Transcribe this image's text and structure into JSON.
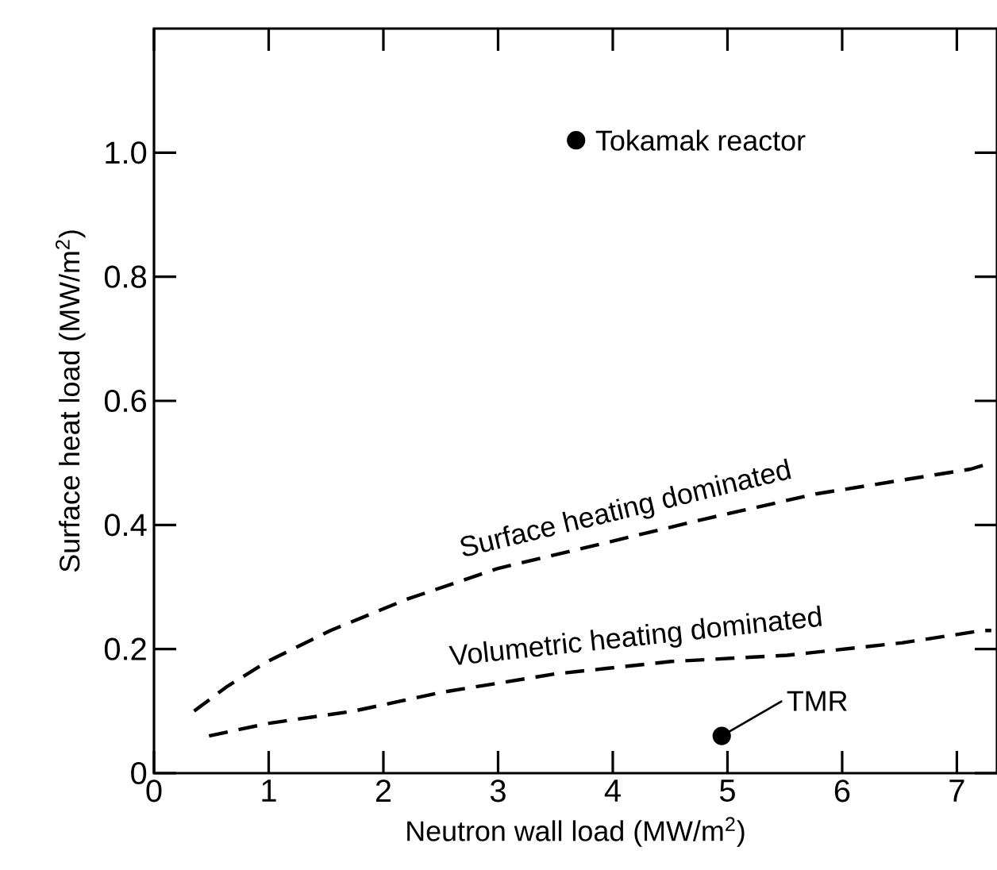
{
  "chart_data": {
    "type": "line",
    "xlabel": "Neutron wall load (MW/m$^{2}$)",
    "ylabel": "Surface heat load (MW/m$^{2}$)",
    "xlim": [
      0,
      7.35
    ],
    "ylim": [
      0,
      1.2
    ],
    "xticks": [
      0,
      1,
      2,
      3,
      4,
      5,
      6,
      7
    ],
    "yticks": [
      0,
      0.2,
      0.4,
      0.6,
      0.8,
      {
        "value": 1,
        "label": "1.0"
      }
    ],
    "grid": false,
    "annotations": [
      {
        "text": "Tokamak reactor",
        "x": 3.68,
        "y": 1.02
      },
      {
        "text": "TMR",
        "x": 4.95,
        "y": 0.06
      }
    ],
    "series": [
      {
        "name": "Surface heating dominated",
        "color": "#000000",
        "line_style": "dashed",
        "marker": "none",
        "x": [
          0.35,
          0.64,
          0.99,
          1.54,
          2.2,
          3.0,
          3.91,
          4.81,
          5.77,
          7.12,
          7.3
        ],
        "values": [
          0.1,
          0.14,
          0.18,
          0.23,
          0.28,
          0.33,
          0.37,
          0.41,
          0.45,
          0.49,
          0.5
        ]
      },
      {
        "name": "Volumetric heating dominated",
        "color": "#000000",
        "line_style": "dashed",
        "marker": "none",
        "x": [
          0.48,
          0.99,
          1.74,
          2.5,
          3.5,
          4.51,
          5.52,
          6.52,
          7.23,
          7.3
        ],
        "values": [
          0.06,
          0.08,
          0.1,
          0.13,
          0.16,
          0.18,
          0.19,
          0.21,
          0.23,
          0.23
        ]
      },
      {
        "type": "scatter",
        "color": "#000000",
        "marker": "circle",
        "x": [
          3.68
        ],
        "values": [
          1.02
        ]
      },
      {
        "type": "scatter",
        "color": "#000000",
        "marker": "circle",
        "x": [
          4.95
        ],
        "values": [
          0.06
        ]
      }
    ]
  }
}
